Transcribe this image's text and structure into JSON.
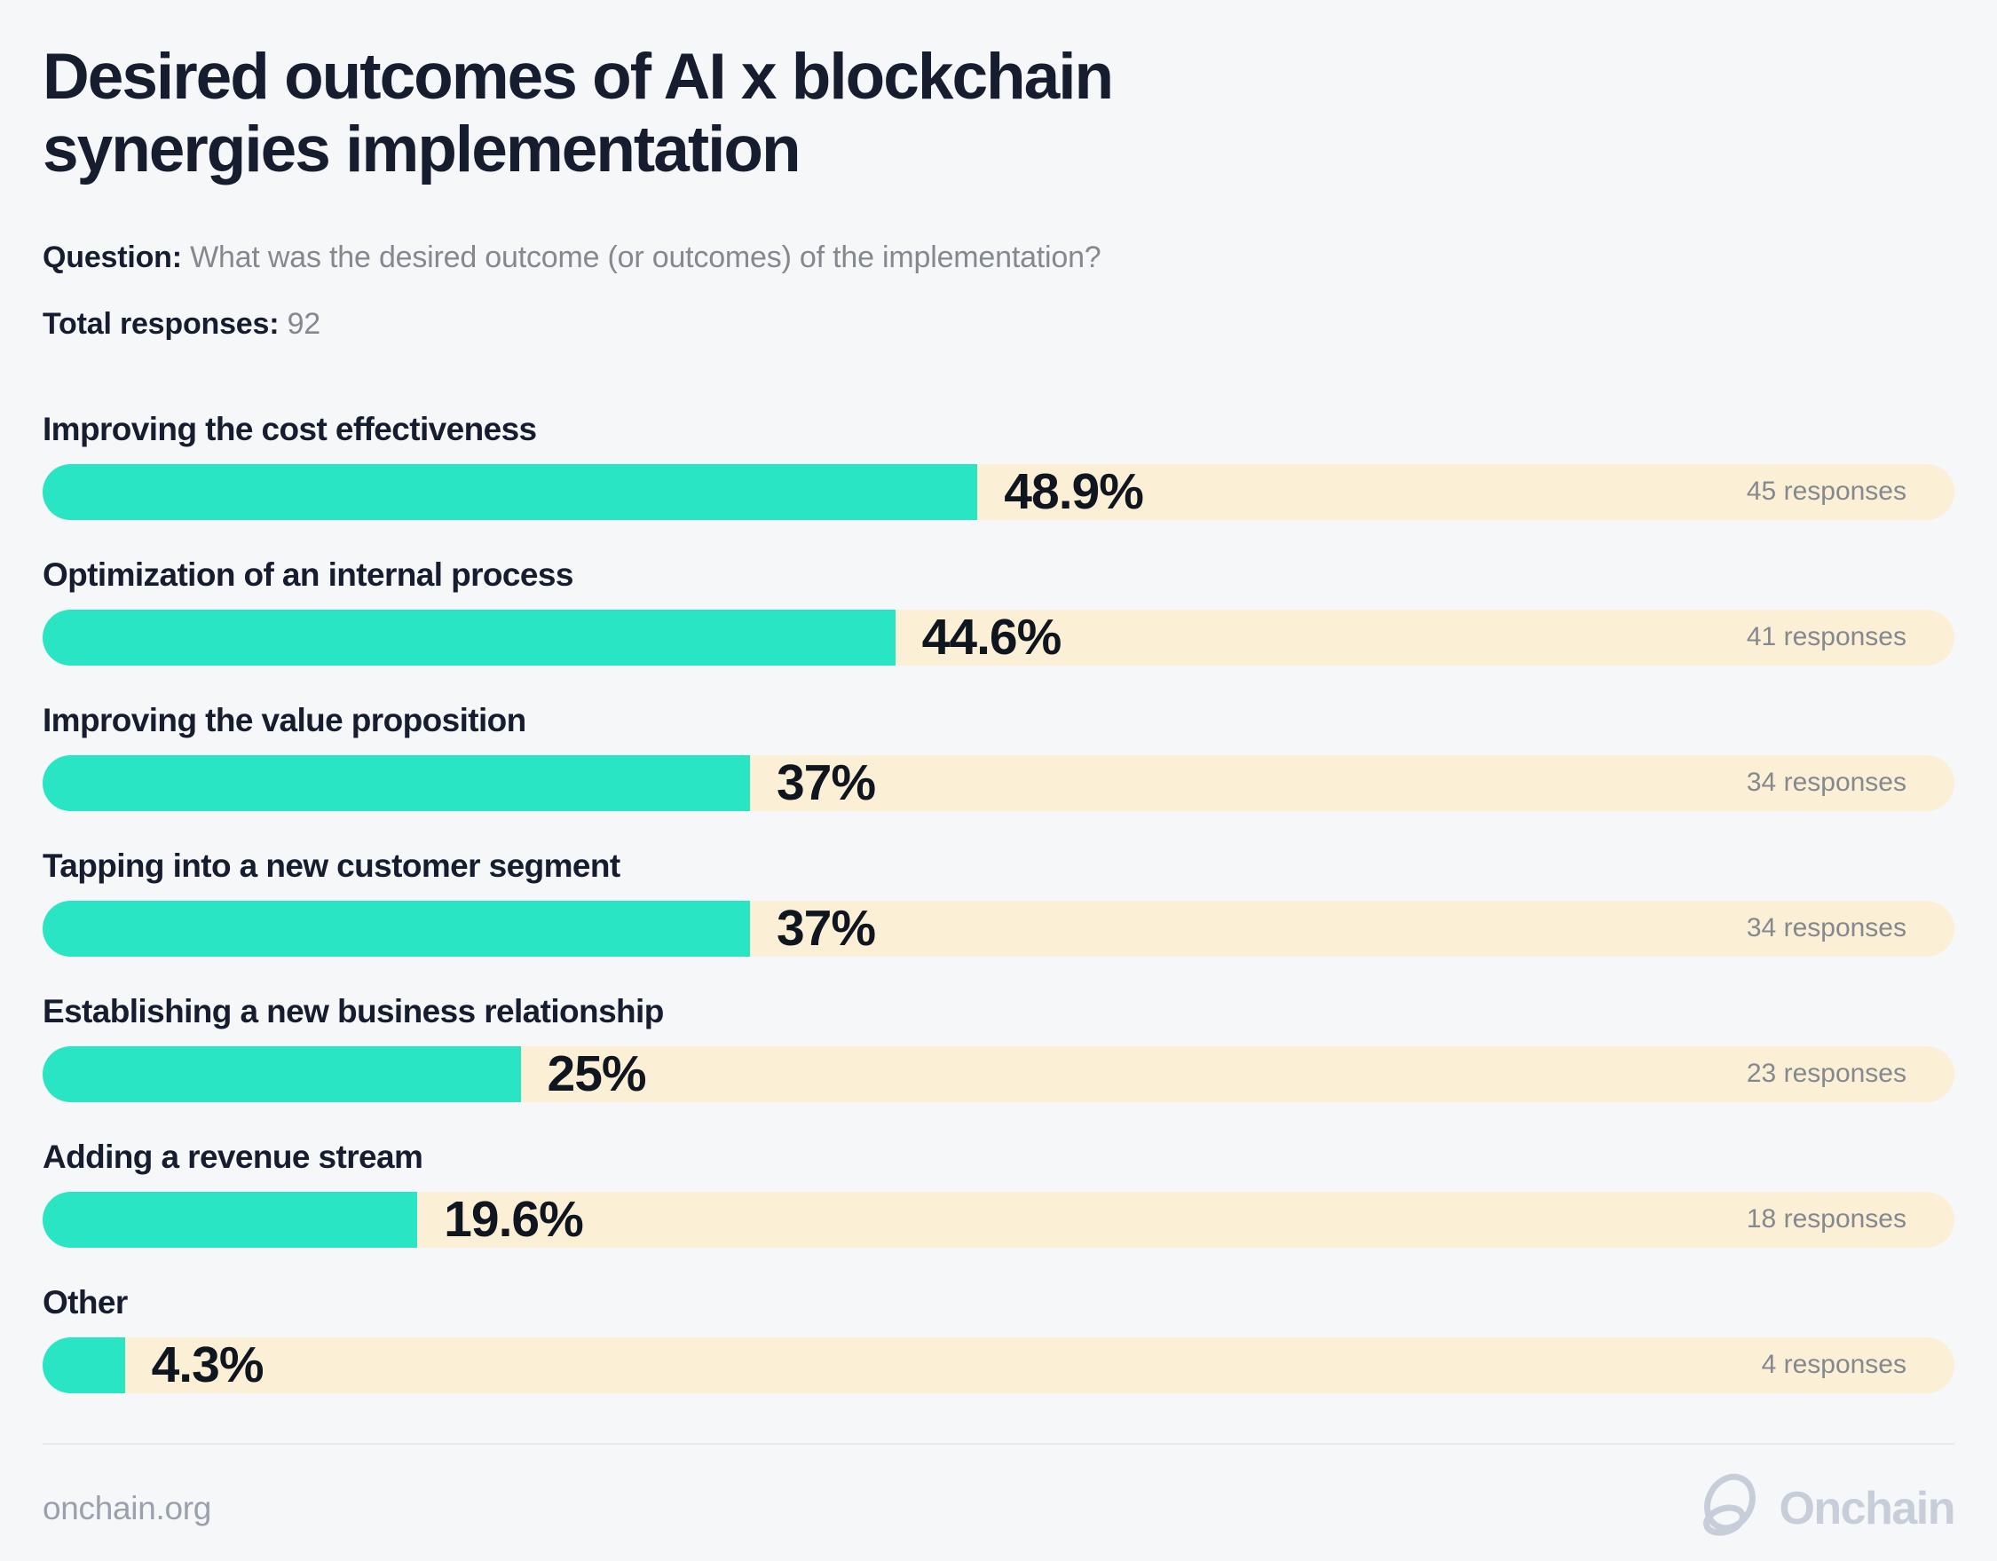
{
  "page": {
    "title_line1": "Desired outcomes of AI x blockchain",
    "title_line2": "synergies implementation",
    "question_label": "Question:",
    "question_text": "What was the desired outcome (or outcomes) of the implementation?",
    "total_label": "Total responses:",
    "total_value": "92"
  },
  "chart_data": {
    "type": "bar",
    "orientation": "horizontal",
    "title": "Desired outcomes of AI x blockchain synergies implementation",
    "question": "What was the desired outcome (or outcomes) of the implementation?",
    "total_responses": 92,
    "categories": [
      "Improving the cost effectiveness",
      "Optimization of an internal process",
      "Improving the value proposition",
      "Tapping into a new customer segment",
      "Establishing a new business relationship",
      "Adding a revenue stream",
      "Other"
    ],
    "values": [
      48.9,
      44.6,
      37,
      37,
      25,
      19.6,
      4.3
    ],
    "value_labels": [
      "48.9%",
      "44.6%",
      "37%",
      "37%",
      "25%",
      "19.6%",
      "4.3%"
    ],
    "response_counts": [
      45,
      41,
      34,
      34,
      23,
      18,
      4
    ],
    "response_labels": [
      "45 responses",
      "41 responses",
      "34 responses",
      "34 responses",
      "23 responses",
      "18 responses",
      "4 responses"
    ],
    "xlim": [
      0,
      100
    ],
    "grid": false,
    "legend": "none",
    "bar_color": "#29e5c4",
    "track_color": "#fbf0d5"
  },
  "footer": {
    "site": "onchain.org",
    "brand": "Onchain"
  }
}
